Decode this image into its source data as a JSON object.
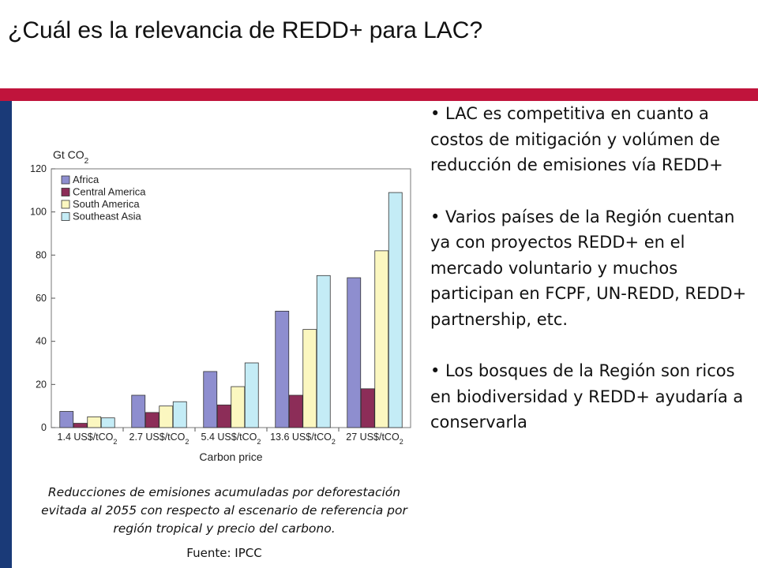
{
  "title": "¿Cuál es la relevancia de REDD+ para LAC?",
  "bullets": [
    "• LAC es competitiva en cuanto a costos de mitigación y volúmen de reducción de emisiones vía REDD+",
    "• Varios países de la Región cuentan ya con proyectos REDD+ en el mercado voluntario y muchos participan en FCPF, UN-REDD, REDD+ partnership, etc.",
    "• Los bosques de la Región son ricos en biodiversidad y REDD+ ayudaría a conservarla"
  ],
  "caption": "Reducciones de emisiones acumuladas por deforestación evitada al 2055 con respecto al escenario de referencia por región tropical y precio del carbono.",
  "source": "Fuente: IPCC",
  "colors": {
    "accent_red": "#c0143c",
    "accent_blue": "#1a3a78"
  },
  "chart_data": {
    "type": "bar",
    "ylabel": "Gt CO2",
    "xlabel": "Carbon price",
    "ylim": [
      0,
      120
    ],
    "yticks": [
      0,
      20,
      40,
      60,
      80,
      100,
      120
    ],
    "categories": [
      "1.4 US$/tCO2",
      "2.7 US$/tCO2",
      "5.4 US$/tCO2",
      "13.6 US$/tCO2",
      "27 US$/tCO2"
    ],
    "legend_position": "top-left",
    "grid": false,
    "series": [
      {
        "name": "Africa",
        "color": "#8e8ecf",
        "values": [
          7.5,
          15,
          26,
          54,
          69.5
        ]
      },
      {
        "name": "Central America",
        "color": "#8c2d58",
        "values": [
          2,
          7,
          10.5,
          15,
          18
        ]
      },
      {
        "name": "South America",
        "color": "#fbf7c0",
        "values": [
          5,
          10,
          19,
          45.5,
          82
        ]
      },
      {
        "name": "Southeast Asia",
        "color": "#c4ecf6",
        "values": [
          4.5,
          12,
          30,
          70.5,
          109
        ]
      }
    ]
  }
}
